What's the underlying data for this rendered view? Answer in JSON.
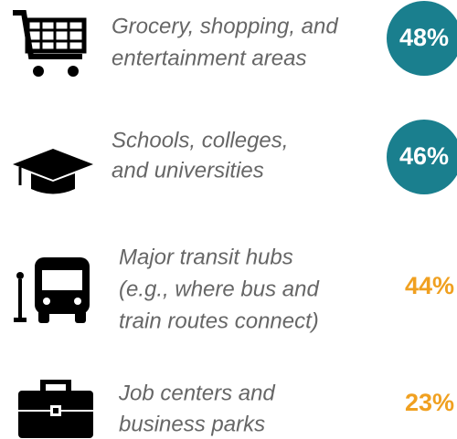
{
  "items": [
    {
      "label": [
        "Grocery, shopping, and",
        "entertainment areas"
      ],
      "value": "48%"
    },
    {
      "label": [
        "Schools, colleges,",
        "and universities"
      ],
      "value": "46%"
    },
    {
      "label": [
        "Major transit hubs",
        "(e.g., where bus and",
        "train routes connect)"
      ],
      "value": "44%"
    },
    {
      "label": [
        "Job centers and",
        "business parks"
      ],
      "value": "23%"
    }
  ]
}
